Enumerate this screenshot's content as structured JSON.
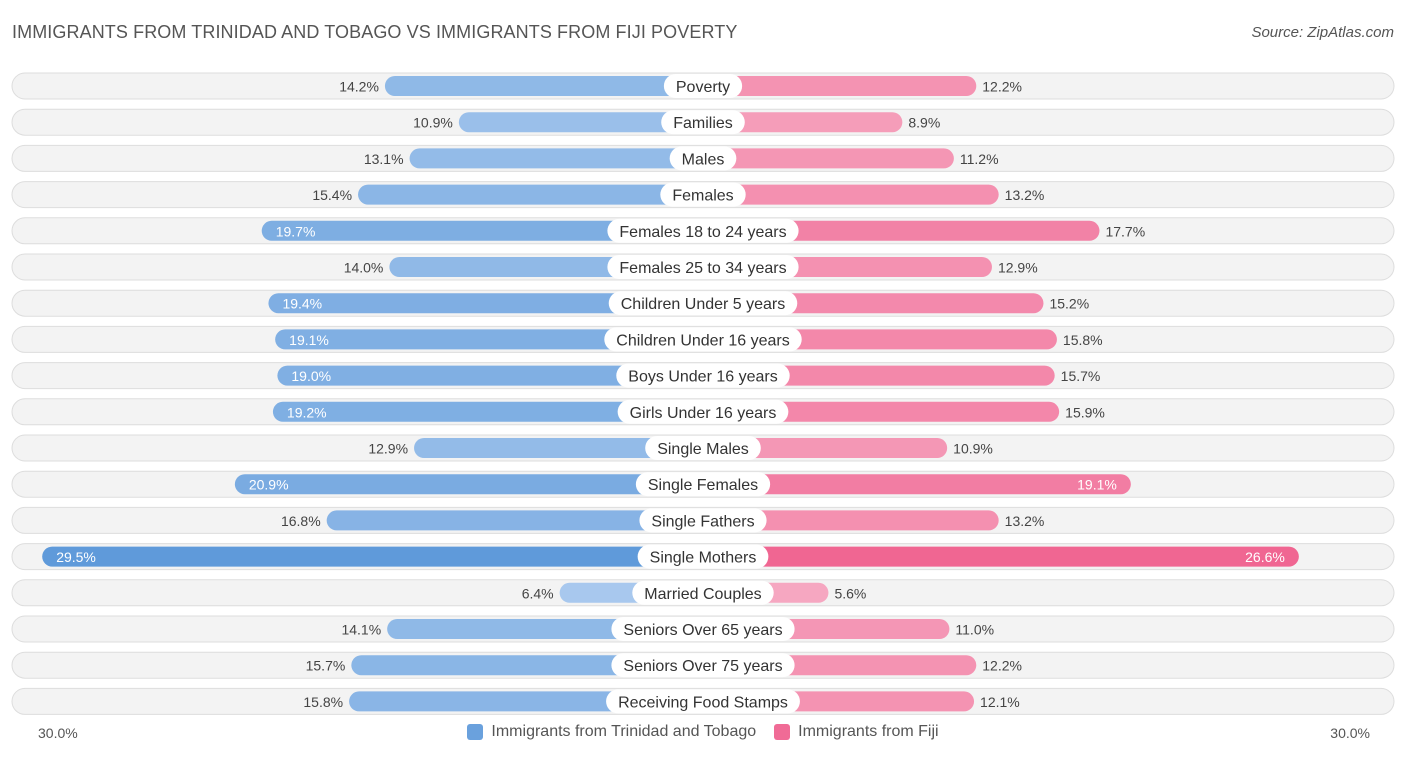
{
  "header": {
    "title": "IMMIGRANTS FROM TRINIDAD AND TOBAGO VS IMMIGRANTS FROM FIJI POVERTY",
    "source": "Source: ZipAtlas.com"
  },
  "colors": {
    "left_strong": "#6aa1dd",
    "left_light": "#a9c9ee",
    "right_strong": "#f06b96",
    "right_light": "#f6a9c2",
    "track": "#efefef",
    "track_border": "#dddddd"
  },
  "axis": {
    "left_label": "30.0%",
    "right_label": "30.0%"
  },
  "legend": {
    "left": "Immigrants from Trinidad and Tobago",
    "right": "Immigrants from Fiji"
  },
  "chart_data": {
    "type": "bar",
    "orientation": "horizontal-diverging",
    "title": "IMMIGRANTS FROM TRINIDAD AND TOBAGO VS IMMIGRANTS FROM FIJI POVERTY",
    "xlim": [
      0,
      30
    ],
    "categories": [
      "Poverty",
      "Families",
      "Males",
      "Females",
      "Females 18 to 24 years",
      "Females 25 to 34 years",
      "Children Under 5 years",
      "Children Under 16 years",
      "Boys Under 16 years",
      "Girls Under 16 years",
      "Single Males",
      "Single Females",
      "Single Fathers",
      "Single Mothers",
      "Married Couples",
      "Seniors Over 65 years",
      "Seniors Over 75 years",
      "Receiving Food Stamps"
    ],
    "series": [
      {
        "name": "Immigrants from Trinidad and Tobago",
        "values": [
          14.2,
          10.9,
          13.1,
          15.4,
          19.7,
          14.0,
          19.4,
          19.1,
          19.0,
          19.2,
          12.9,
          20.9,
          16.8,
          29.5,
          6.4,
          14.1,
          15.7,
          15.8
        ],
        "labels": [
          "14.2%",
          "10.9%",
          "13.1%",
          "15.4%",
          "19.7%",
          "14.0%",
          "19.4%",
          "19.1%",
          "19.0%",
          "19.2%",
          "12.9%",
          "20.9%",
          "16.8%",
          "29.5%",
          "6.4%",
          "14.1%",
          "15.7%",
          "15.8%"
        ]
      },
      {
        "name": "Immigrants from Fiji",
        "values": [
          12.2,
          8.9,
          11.2,
          13.2,
          17.7,
          12.9,
          15.2,
          15.8,
          15.7,
          15.9,
          10.9,
          19.1,
          13.2,
          26.6,
          5.6,
          11.0,
          12.2,
          12.1
        ],
        "labels": [
          "12.2%",
          "8.9%",
          "11.2%",
          "13.2%",
          "17.7%",
          "12.9%",
          "15.2%",
          "15.8%",
          "15.7%",
          "15.9%",
          "10.9%",
          "19.1%",
          "13.2%",
          "26.6%",
          "5.6%",
          "11.0%",
          "12.2%",
          "12.1%"
        ]
      }
    ]
  }
}
